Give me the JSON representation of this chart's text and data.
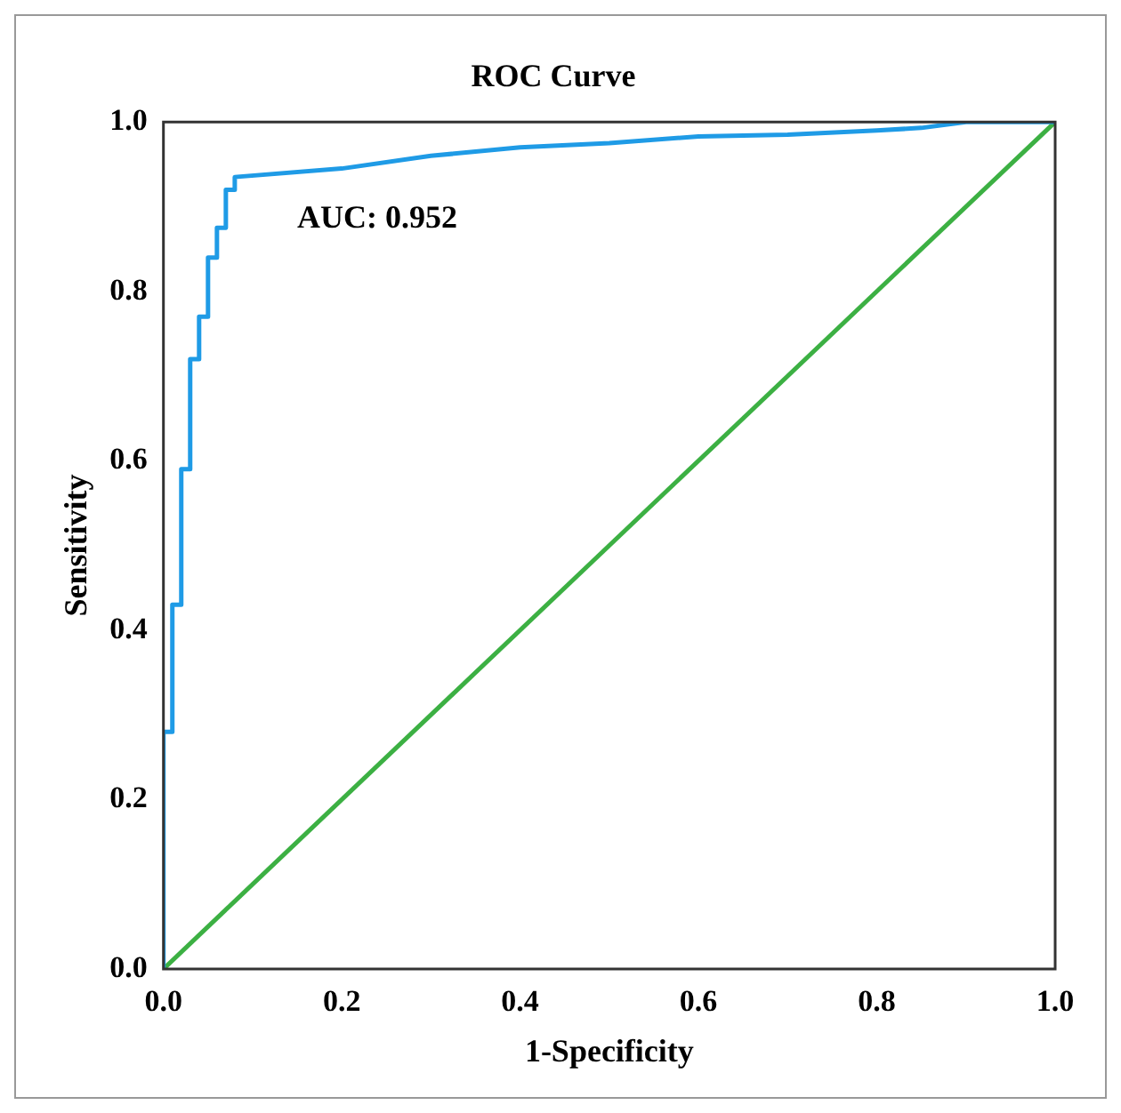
{
  "chart_data": {
    "type": "line",
    "title": "ROC Curve",
    "xlabel": "1-Specificity",
    "ylabel": "Sensitivity",
    "annotations": [
      "AUC: 0.952"
    ],
    "xlim": [
      0,
      1
    ],
    "ylim": [
      0,
      1
    ],
    "xticks": [
      {
        "value": 0,
        "label": "0.0"
      },
      {
        "value": 0.2,
        "label": "0.2"
      },
      {
        "value": 0.4,
        "label": "0.4"
      },
      {
        "value": 0.6,
        "label": "0.6"
      },
      {
        "value": 0.8,
        "label": "0.8"
      },
      {
        "value": 1,
        "label": "1.0"
      }
    ],
    "yticks": [
      {
        "value": 0,
        "label": "0.0"
      },
      {
        "value": 0.2,
        "label": "0.2"
      },
      {
        "value": 0.4,
        "label": "0.4"
      },
      {
        "value": 0.6,
        "label": "0.6"
      },
      {
        "value": 0.8,
        "label": "0.8"
      },
      {
        "value": 1,
        "label": "1.0"
      }
    ],
    "grid": false,
    "legend": false,
    "marker": "none",
    "line_style": "solid",
    "series": [
      {
        "color": "#1f9be6",
        "x": [
          0,
          0,
          0.01,
          0.01,
          0.02,
          0.02,
          0.03,
          0.03,
          0.04,
          0.04,
          0.05,
          0.05,
          0.06,
          0.06,
          0.07,
          0.07,
          0.08,
          0.08,
          0.2,
          0.3,
          0.4,
          0.5,
          0.6,
          0.7,
          0.8,
          0.85,
          0.9,
          1
        ],
        "values": [
          0,
          0.28,
          0.28,
          0.43,
          0.43,
          0.59,
          0.59,
          0.72,
          0.72,
          0.77,
          0.77,
          0.84,
          0.84,
          0.875,
          0.875,
          0.92,
          0.92,
          0.935,
          0.945,
          0.96,
          0.97,
          0.975,
          0.983,
          0.985,
          0.99,
          0.993,
          1,
          1
        ]
      },
      {
        "color": "#3cb043",
        "x": [
          0,
          1
        ],
        "values": [
          0,
          1
        ]
      }
    ]
  }
}
